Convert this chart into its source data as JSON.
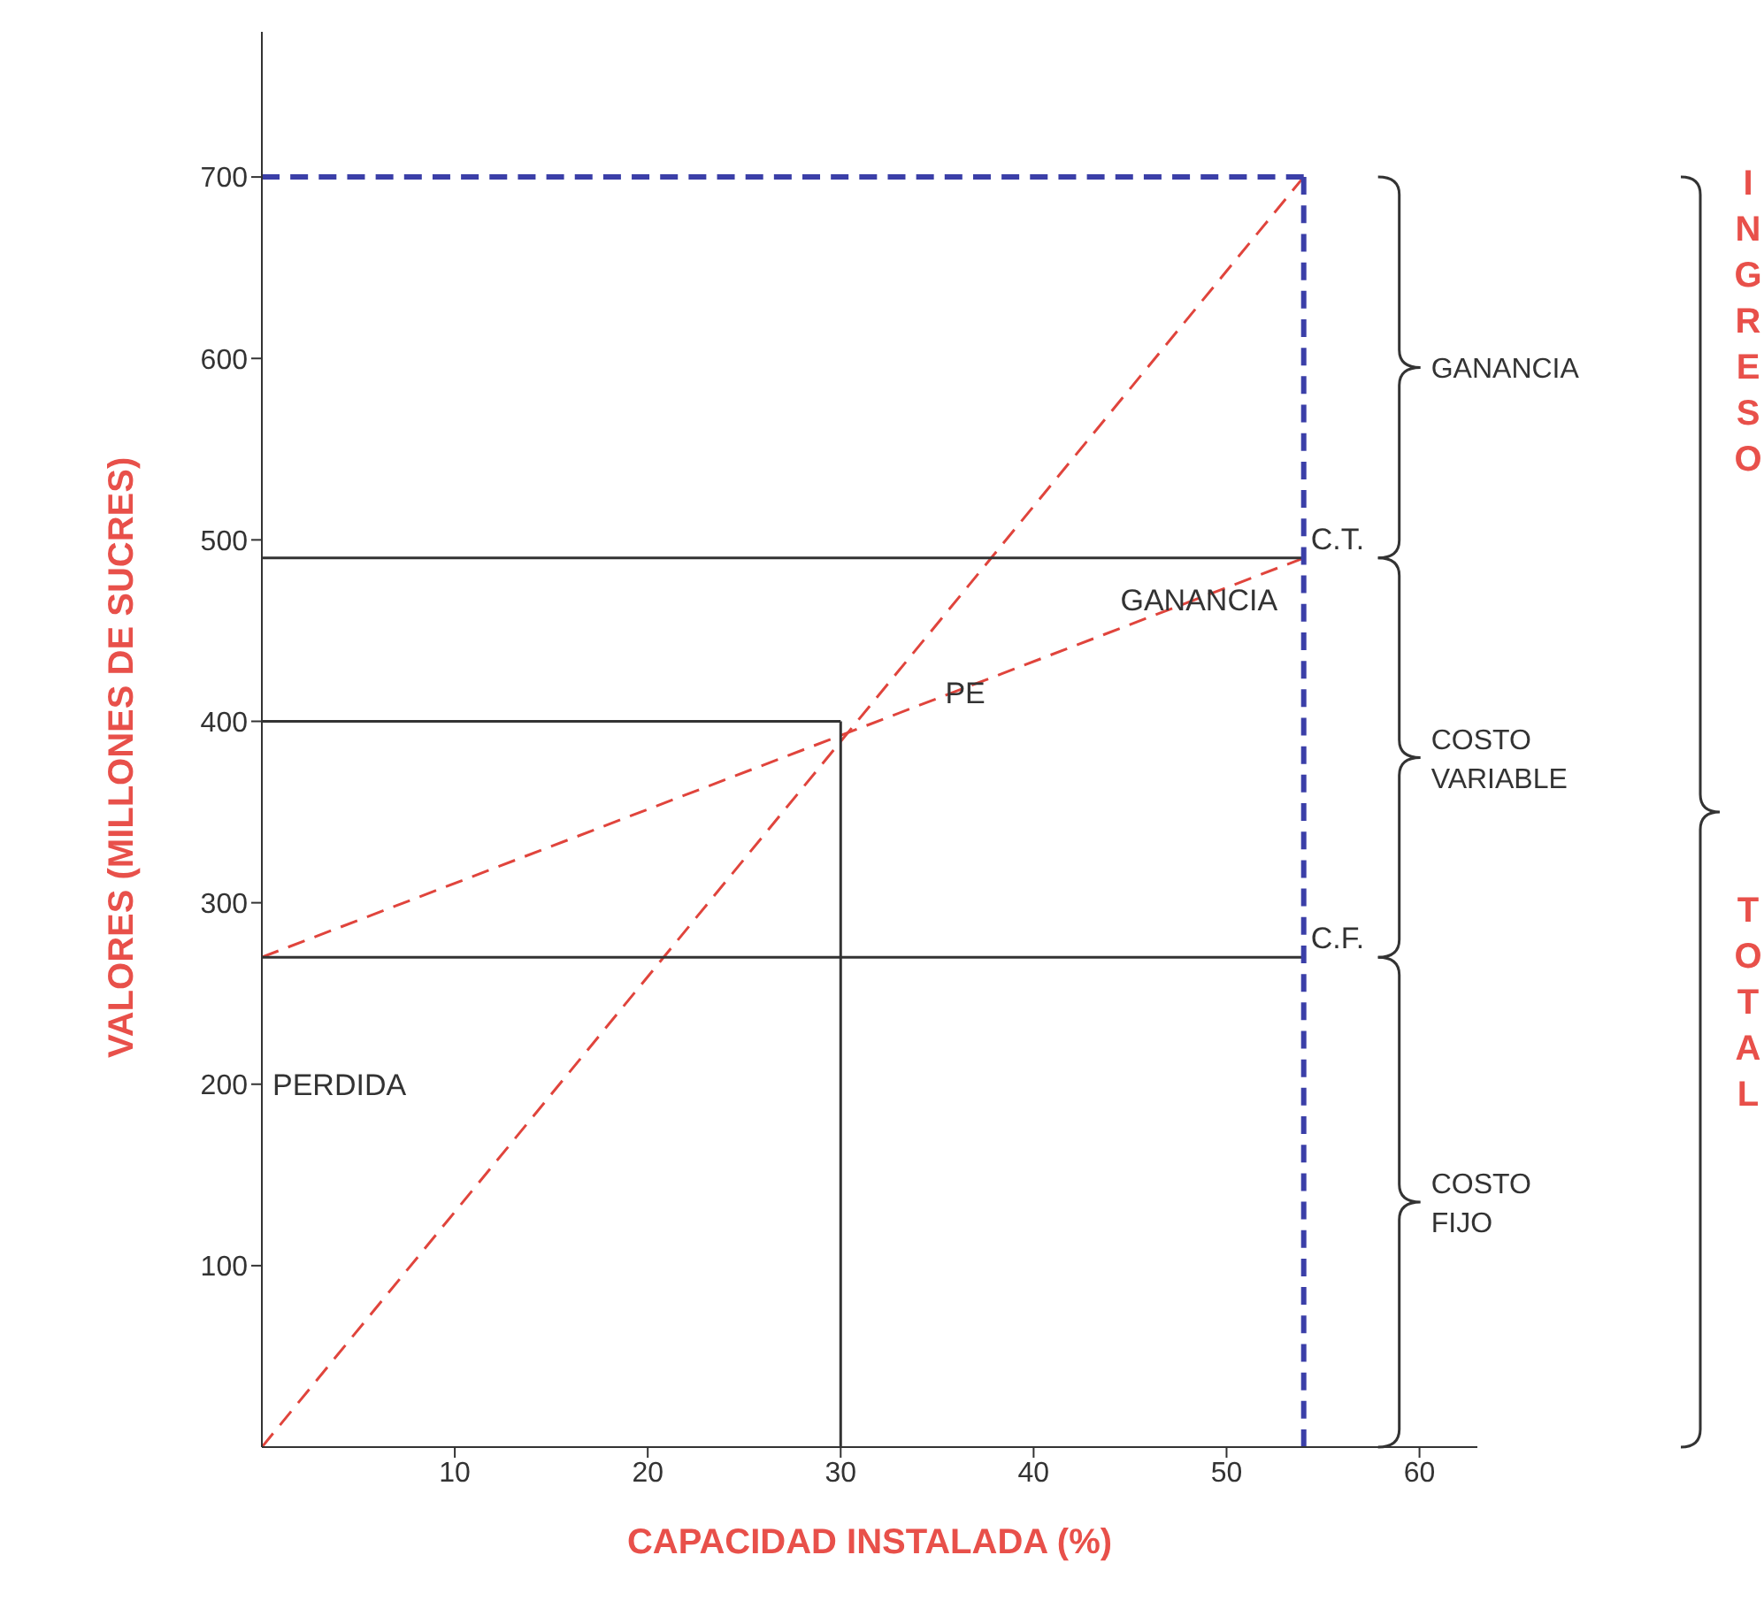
{
  "chart_data": {
    "type": "line",
    "xlabel": "CAPACIDAD INSTALADA (%)",
    "ylabel": "VALORES (MILLONES DE SUCRES)",
    "xlim": [
      0,
      63
    ],
    "xticks": [
      10,
      20,
      30,
      40,
      50,
      60
    ],
    "ylim": [
      0,
      780
    ],
    "yticks": [
      100,
      200,
      300,
      400,
      500,
      600,
      700
    ],
    "marker": "none",
    "series": [
      {
        "color": "#e0443c",
        "line_style": "dashed",
        "x": [
          0,
          54
        ],
        "values": [
          0,
          700
        ]
      },
      {
        "color": "#e0443c",
        "line_style": "dashed",
        "x": [
          0,
          54
        ],
        "values": [
          270,
          490
        ]
      },
      {
        "color": "#333333",
        "line_style": "solid",
        "x": [
          0,
          54
        ],
        "values": [
          490,
          490
        ]
      },
      {
        "color": "#333333",
        "line_style": "solid",
        "x": [
          0,
          30
        ],
        "values": [
          400,
          400
        ]
      },
      {
        "color": "#333333",
        "line_style": "solid",
        "x": [
          30,
          30
        ],
        "values": [
          0,
          400
        ]
      },
      {
        "color": "#333333",
        "line_style": "solid",
        "x": [
          0,
          54
        ],
        "values": [
          270,
          270
        ]
      },
      {
        "color": "#3b3fa8",
        "line_style": "dashed",
        "x": [
          0,
          54
        ],
        "values": [
          700,
          700
        ]
      },
      {
        "color": "#3b3fa8",
        "line_style": "dashed",
        "x": [
          54,
          54
        ],
        "values": [
          0,
          700
        ]
      }
    ],
    "annotations": [
      "PERDIDA",
      "PE",
      "GANANCIA",
      {
        "text": "C.T.",
        "x": 54,
        "y": 490
      },
      {
        "text": "C.F.",
        "x": 54,
        "y": 270
      },
      "GANANCIA",
      "COSTO VARIABLE",
      "COSTO FIJO",
      "INGRESO",
      "TOTAL"
    ]
  }
}
